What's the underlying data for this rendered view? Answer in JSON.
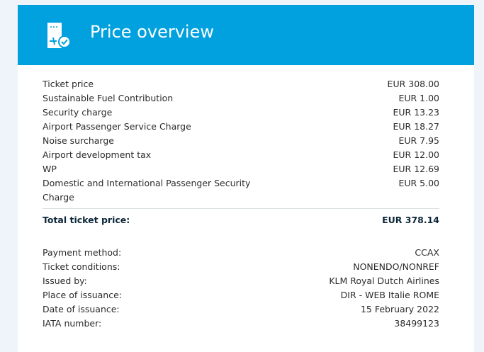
{
  "header": {
    "title": "Price overview",
    "icon": "ticket-check-icon",
    "color": "#00a1de"
  },
  "prices": [
    {
      "label": "Ticket price",
      "value": "EUR 308.00"
    },
    {
      "label": "Sustainable Fuel Contribution",
      "value": "EUR 1.00"
    },
    {
      "label": "Security charge",
      "value": "EUR 13.23"
    },
    {
      "label": "Airport Passenger Service Charge",
      "value": "EUR 18.27"
    },
    {
      "label": "Noise surcharge",
      "value": "EUR 7.95"
    },
    {
      "label": "Airport development tax",
      "value": "EUR 12.00"
    },
    {
      "label": "WP",
      "value": "EUR 12.69"
    },
    {
      "label": "Domestic and International Passenger Security Charge",
      "value": "EUR 5.00"
    }
  ],
  "total": {
    "label": "Total ticket price:",
    "value": "EUR 378.14"
  },
  "details": [
    {
      "label": "Payment method:",
      "value": "CCAX"
    },
    {
      "label": "Ticket conditions:",
      "value": "NONENDO/NONREF"
    },
    {
      "label": "Issued by:",
      "value": "KLM Royal Dutch Airlines"
    },
    {
      "label": "Place of issuance:",
      "value": "DIR - WEB Italie ROME"
    },
    {
      "label": "Date of issuance:",
      "value": "15 February 2022"
    },
    {
      "label": "IATA number:",
      "value": "38499123"
    }
  ]
}
